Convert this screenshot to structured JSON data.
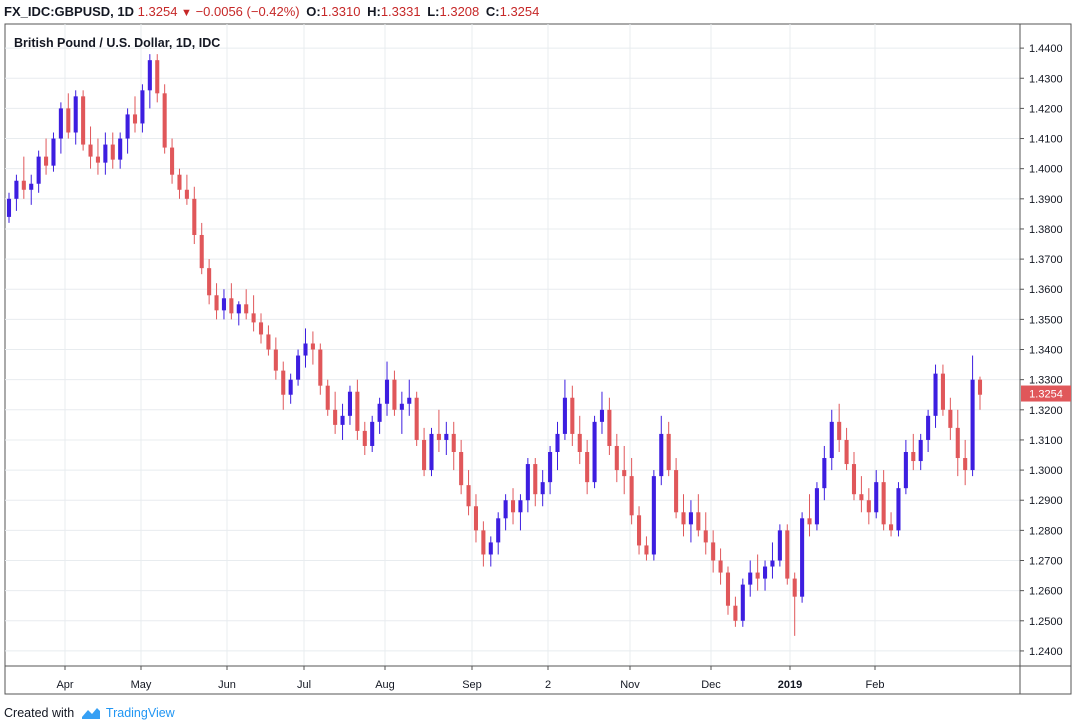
{
  "header": {
    "symbol": "FX_IDC:GBPUSD, 1D",
    "last": "1.3254",
    "change": "−0.0056 (−0.42%)",
    "o_label": "O:",
    "o_value": "1.3310",
    "h_label": "H:",
    "h_value": "1.3331",
    "l_label": "L:",
    "l_value": "1.3208",
    "c_label": "C:",
    "c_value": "1.3254"
  },
  "footer": {
    "prefix": "Created with",
    "brand": "TradingView"
  },
  "colors": {
    "up": "#3d1ee0",
    "down": "#e0575a",
    "grid": "#e8ecef",
    "axis": "#555555",
    "last_tag": "#e0575a"
  },
  "chart_data": {
    "type": "candlestick",
    "title": "British Pound / U.S. Dollar, 1D, IDC",
    "ylim": [
      1.235,
      1.448
    ],
    "y_ticks": [
      "1.4400",
      "1.4300",
      "1.4200",
      "1.4100",
      "1.4000",
      "1.3900",
      "1.3800",
      "1.3700",
      "1.3600",
      "1.3500",
      "1.3400",
      "1.3300",
      "1.3200",
      "1.3100",
      "1.3000",
      "1.2900",
      "1.2800",
      "1.2700",
      "1.2600",
      "1.2500",
      "1.2400"
    ],
    "x_labels": [
      "Apr",
      "May",
      "Jun",
      "Jul",
      "Aug",
      "Sep",
      "2",
      "Nov",
      "Dec",
      "2019",
      "Feb"
    ],
    "last_price_label": "1.3254",
    "candles": [
      [
        1.384,
        1.392,
        1.382,
        1.39
      ],
      [
        1.39,
        1.398,
        1.386,
        1.396
      ],
      [
        1.396,
        1.404,
        1.39,
        1.393
      ],
      [
        1.393,
        1.398,
        1.388,
        1.395
      ],
      [
        1.395,
        1.406,
        1.392,
        1.404
      ],
      [
        1.404,
        1.41,
        1.398,
        1.401
      ],
      [
        1.401,
        1.412,
        1.399,
        1.41
      ],
      [
        1.41,
        1.422,
        1.405,
        1.42
      ],
      [
        1.42,
        1.425,
        1.41,
        1.412
      ],
      [
        1.412,
        1.426,
        1.408,
        1.424
      ],
      [
        1.424,
        1.426,
        1.406,
        1.408
      ],
      [
        1.408,
        1.414,
        1.4,
        1.404
      ],
      [
        1.404,
        1.41,
        1.398,
        1.402
      ],
      [
        1.402,
        1.412,
        1.398,
        1.408
      ],
      [
        1.408,
        1.412,
        1.4,
        1.403
      ],
      [
        1.403,
        1.412,
        1.4,
        1.41
      ],
      [
        1.41,
        1.42,
        1.405,
        1.418
      ],
      [
        1.418,
        1.424,
        1.412,
        1.415
      ],
      [
        1.415,
        1.428,
        1.412,
        1.426
      ],
      [
        1.426,
        1.438,
        1.42,
        1.436
      ],
      [
        1.436,
        1.438,
        1.422,
        1.425
      ],
      [
        1.425,
        1.428,
        1.405,
        1.407
      ],
      [
        1.407,
        1.41,
        1.395,
        1.398
      ],
      [
        1.398,
        1.4,
        1.39,
        1.393
      ],
      [
        1.393,
        1.398,
        1.388,
        1.39
      ],
      [
        1.39,
        1.394,
        1.375,
        1.378
      ],
      [
        1.378,
        1.382,
        1.365,
        1.367
      ],
      [
        1.367,
        1.37,
        1.355,
        1.358
      ],
      [
        1.358,
        1.362,
        1.35,
        1.353
      ],
      [
        1.353,
        1.36,
        1.35,
        1.357
      ],
      [
        1.357,
        1.362,
        1.35,
        1.352
      ],
      [
        1.352,
        1.356,
        1.348,
        1.355
      ],
      [
        1.355,
        1.36,
        1.35,
        1.352
      ],
      [
        1.352,
        1.358,
        1.346,
        1.349
      ],
      [
        1.349,
        1.352,
        1.342,
        1.345
      ],
      [
        1.345,
        1.348,
        1.338,
        1.34
      ],
      [
        1.34,
        1.344,
        1.33,
        1.333
      ],
      [
        1.333,
        1.336,
        1.32,
        1.325
      ],
      [
        1.325,
        1.332,
        1.322,
        1.33
      ],
      [
        1.33,
        1.34,
        1.328,
        1.338
      ],
      [
        1.338,
        1.347,
        1.334,
        1.342
      ],
      [
        1.342,
        1.346,
        1.335,
        1.34
      ],
      [
        1.34,
        1.342,
        1.325,
        1.328
      ],
      [
        1.328,
        1.33,
        1.318,
        1.32
      ],
      [
        1.32,
        1.326,
        1.312,
        1.315
      ],
      [
        1.315,
        1.322,
        1.31,
        1.318
      ],
      [
        1.318,
        1.328,
        1.315,
        1.326
      ],
      [
        1.326,
        1.33,
        1.31,
        1.313
      ],
      [
        1.313,
        1.316,
        1.305,
        1.308
      ],
      [
        1.308,
        1.318,
        1.306,
        1.316
      ],
      [
        1.316,
        1.324,
        1.312,
        1.322
      ],
      [
        1.322,
        1.336,
        1.318,
        1.33
      ],
      [
        1.33,
        1.333,
        1.318,
        1.32
      ],
      [
        1.32,
        1.326,
        1.312,
        1.322
      ],
      [
        1.322,
        1.33,
        1.318,
        1.324
      ],
      [
        1.324,
        1.326,
        1.308,
        1.31
      ],
      [
        1.31,
        1.314,
        1.298,
        1.3
      ],
      [
        1.3,
        1.314,
        1.298,
        1.312
      ],
      [
        1.312,
        1.32,
        1.306,
        1.31
      ],
      [
        1.31,
        1.316,
        1.305,
        1.312
      ],
      [
        1.312,
        1.316,
        1.3,
        1.306
      ],
      [
        1.306,
        1.31,
        1.292,
        1.295
      ],
      [
        1.295,
        1.3,
        1.285,
        1.288
      ],
      [
        1.288,
        1.292,
        1.276,
        1.28
      ],
      [
        1.28,
        1.283,
        1.268,
        1.272
      ],
      [
        1.272,
        1.278,
        1.268,
        1.276
      ],
      [
        1.276,
        1.286,
        1.272,
        1.284
      ],
      [
        1.284,
        1.292,
        1.28,
        1.29
      ],
      [
        1.29,
        1.294,
        1.282,
        1.286
      ],
      [
        1.286,
        1.292,
        1.28,
        1.29
      ],
      [
        1.29,
        1.304,
        1.286,
        1.302
      ],
      [
        1.302,
        1.304,
        1.288,
        1.292
      ],
      [
        1.292,
        1.3,
        1.288,
        1.296
      ],
      [
        1.296,
        1.308,
        1.292,
        1.306
      ],
      [
        1.306,
        1.316,
        1.3,
        1.312
      ],
      [
        1.312,
        1.33,
        1.31,
        1.324
      ],
      [
        1.324,
        1.328,
        1.308,
        1.312
      ],
      [
        1.312,
        1.318,
        1.302,
        1.306
      ],
      [
        1.306,
        1.31,
        1.292,
        1.296
      ],
      [
        1.296,
        1.318,
        1.294,
        1.316
      ],
      [
        1.316,
        1.326,
        1.312,
        1.32
      ],
      [
        1.32,
        1.324,
        1.305,
        1.308
      ],
      [
        1.308,
        1.312,
        1.296,
        1.3
      ],
      [
        1.3,
        1.308,
        1.292,
        1.298
      ],
      [
        1.298,
        1.304,
        1.282,
        1.285
      ],
      [
        1.285,
        1.288,
        1.272,
        1.275
      ],
      [
        1.275,
        1.278,
        1.27,
        1.272
      ],
      [
        1.272,
        1.3,
        1.27,
        1.298
      ],
      [
        1.298,
        1.318,
        1.295,
        1.312
      ],
      [
        1.312,
        1.316,
        1.298,
        1.3
      ],
      [
        1.3,
        1.304,
        1.284,
        1.286
      ],
      [
        1.286,
        1.292,
        1.278,
        1.282
      ],
      [
        1.282,
        1.29,
        1.276,
        1.286
      ],
      [
        1.286,
        1.292,
        1.278,
        1.28
      ],
      [
        1.28,
        1.286,
        1.272,
        1.276
      ],
      [
        1.276,
        1.28,
        1.266,
        1.27
      ],
      [
        1.27,
        1.274,
        1.262,
        1.266
      ],
      [
        1.266,
        1.268,
        1.252,
        1.255
      ],
      [
        1.255,
        1.258,
        1.248,
        1.25
      ],
      [
        1.25,
        1.264,
        1.248,
        1.262
      ],
      [
        1.262,
        1.27,
        1.258,
        1.266
      ],
      [
        1.266,
        1.272,
        1.26,
        1.264
      ],
      [
        1.264,
        1.27,
        1.26,
        1.268
      ],
      [
        1.268,
        1.276,
        1.264,
        1.27
      ],
      [
        1.27,
        1.282,
        1.268,
        1.28
      ],
      [
        1.28,
        1.282,
        1.262,
        1.264
      ],
      [
        1.264,
        1.266,
        1.245,
        1.258
      ],
      [
        1.258,
        1.286,
        1.256,
        1.284
      ],
      [
        1.284,
        1.292,
        1.278,
        1.282
      ],
      [
        1.282,
        1.296,
        1.28,
        1.294
      ],
      [
        1.294,
        1.308,
        1.29,
        1.304
      ],
      [
        1.304,
        1.32,
        1.3,
        1.316
      ],
      [
        1.316,
        1.322,
        1.306,
        1.31
      ],
      [
        1.31,
        1.314,
        1.3,
        1.302
      ],
      [
        1.302,
        1.306,
        1.29,
        1.292
      ],
      [
        1.292,
        1.298,
        1.286,
        1.29
      ],
      [
        1.29,
        1.294,
        1.282,
        1.286
      ],
      [
        1.286,
        1.3,
        1.284,
        1.296
      ],
      [
        1.296,
        1.3,
        1.28,
        1.282
      ],
      [
        1.282,
        1.286,
        1.278,
        1.28
      ],
      [
        1.28,
        1.296,
        1.278,
        1.294
      ],
      [
        1.294,
        1.31,
        1.292,
        1.306
      ],
      [
        1.306,
        1.312,
        1.3,
        1.303
      ],
      [
        1.303,
        1.312,
        1.3,
        1.31
      ],
      [
        1.31,
        1.32,
        1.306,
        1.318
      ],
      [
        1.318,
        1.335,
        1.314,
        1.332
      ],
      [
        1.332,
        1.335,
        1.318,
        1.32
      ],
      [
        1.32,
        1.324,
        1.31,
        1.314
      ],
      [
        1.314,
        1.32,
        1.298,
        1.304
      ],
      [
        1.304,
        1.31,
        1.295,
        1.3
      ],
      [
        1.3,
        1.338,
        1.298,
        1.33
      ],
      [
        1.33,
        1.331,
        1.32,
        1.325
      ]
    ]
  }
}
